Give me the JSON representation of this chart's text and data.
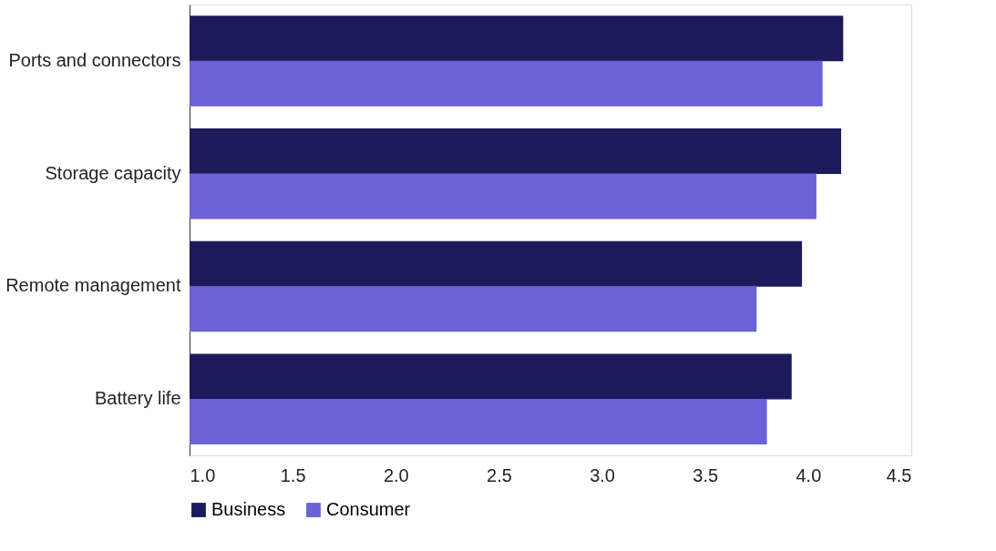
{
  "chart_data": {
    "type": "bar",
    "orientation": "horizontal",
    "categories": [
      "Ports and connectors",
      "Storage capacity",
      "Remote management",
      "Battery life"
    ],
    "series": [
      {
        "name": "Business",
        "color": "#1c1a5a",
        "values": [
          4.17,
          4.16,
          3.97,
          3.92
        ]
      },
      {
        "name": "Consumer",
        "color": "#6a62d6",
        "values": [
          4.07,
          4.04,
          3.75,
          3.8
        ]
      }
    ],
    "xlim": [
      1.0,
      4.5
    ],
    "xticks": [
      {
        "value": 1.0,
        "label": "1.0"
      },
      {
        "value": 1.5,
        "label": "1.5"
      },
      {
        "value": 2.0,
        "label": "2.0"
      },
      {
        "value": 2.5,
        "label": "2.5"
      },
      {
        "value": 3.0,
        "label": "3.0"
      },
      {
        "value": 3.5,
        "label": "3.5"
      },
      {
        "value": 4.0,
        "label": "4.0"
      },
      {
        "value": 4.5,
        "label": "4.5"
      }
    ],
    "grid": false,
    "legend": "bottom"
  }
}
